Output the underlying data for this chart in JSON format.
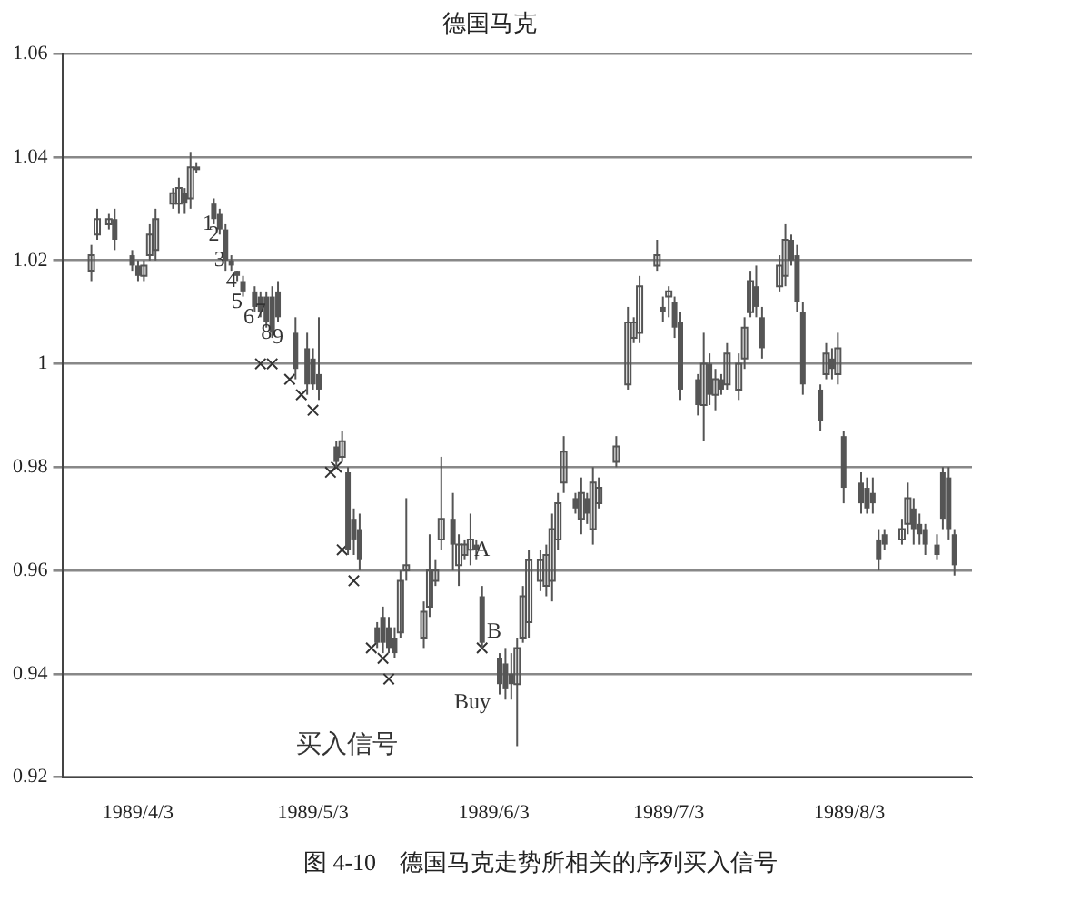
{
  "chart_data": {
    "type": "candlestick",
    "title": "德国马克",
    "color": "#555555",
    "x": [
      "1989-03-26",
      "1989-03-27",
      "1989-03-29",
      "1989-03-30",
      "1989-04-02",
      "1989-04-03",
      "1989-04-04",
      "1989-04-05",
      "1989-04-06",
      "1989-04-09",
      "1989-04-10",
      "1989-04-11",
      "1989-04-12",
      "1989-04-13",
      "1989-04-16",
      "1989-04-17",
      "1989-04-18",
      "1989-04-19",
      "1989-04-20",
      "1989-04-21",
      "1989-04-23",
      "1989-04-24",
      "1989-04-25",
      "1989-04-26",
      "1989-04-27",
      "1989-04-30",
      "1989-05-02",
      "1989-05-03",
      "1989-05-04",
      "1989-05-07",
      "1989-05-08",
      "1989-05-09",
      "1989-05-10",
      "1989-05-11",
      "1989-05-14",
      "1989-05-15",
      "1989-05-16",
      "1989-05-17",
      "1989-05-18",
      "1989-05-19",
      "1989-05-22",
      "1989-05-23",
      "1989-05-24",
      "1989-05-25",
      "1989-05-27",
      "1989-05-28",
      "1989-05-29",
      "1989-05-30",
      "1989-05-31",
      "1989-06-01",
      "1989-06-04",
      "1989-06-05",
      "1989-06-06",
      "1989-06-07",
      "1989-06-08",
      "1989-06-09",
      "1989-06-11",
      "1989-06-12",
      "1989-06-13",
      "1989-06-14",
      "1989-06-15",
      "1989-06-17",
      "1989-06-18",
      "1989-06-19",
      "1989-06-20",
      "1989-06-21",
      "1989-06-24",
      "1989-06-26",
      "1989-06-27",
      "1989-06-28",
      "1989-07-01",
      "1989-07-02",
      "1989-07-03",
      "1989-07-04",
      "1989-07-05",
      "1989-07-08",
      "1989-07-09",
      "1989-07-10",
      "1989-07-11",
      "1989-07-12",
      "1989-07-13",
      "1989-07-15",
      "1989-07-16",
      "1989-07-17",
      "1989-07-18",
      "1989-07-19",
      "1989-07-22",
      "1989-07-23",
      "1989-07-24",
      "1989-07-25",
      "1989-07-26",
      "1989-07-29",
      "1989-07-30",
      "1989-07-31",
      "1989-08-01",
      "1989-08-02",
      "1989-08-05",
      "1989-08-06",
      "1989-08-07",
      "1989-08-08",
      "1989-08-09",
      "1989-08-12",
      "1989-08-13",
      "1989-08-14",
      "1989-08-15",
      "1989-08-16",
      "1989-08-18",
      "1989-08-19",
      "1989-08-20",
      "1989-08-21"
    ],
    "ohlc": [
      [
        1.018,
        1.023,
        1.016,
        1.021
      ],
      [
        1.025,
        1.03,
        1.024,
        1.028
      ],
      [
        1.027,
        1.029,
        1.026,
        1.028
      ],
      [
        1.028,
        1.03,
        1.022,
        1.024
      ],
      [
        1.021,
        1.022,
        1.018,
        1.019
      ],
      [
        1.019,
        1.02,
        1.016,
        1.017
      ],
      [
        1.017,
        1.02,
        1.016,
        1.019
      ],
      [
        1.021,
        1.027,
        1.02,
        1.025
      ],
      [
        1.022,
        1.03,
        1.02,
        1.028
      ],
      [
        1.031,
        1.034,
        1.03,
        1.033
      ],
      [
        1.031,
        1.036,
        1.029,
        1.034
      ],
      [
        1.033,
        1.034,
        1.029,
        1.031
      ],
      [
        1.032,
        1.041,
        1.03,
        1.038
      ],
      [
        1.038,
        1.039,
        1.037,
        1.038
      ],
      [
        1.031,
        1.032,
        1.027,
        1.028
      ],
      [
        1.029,
        1.03,
        1.025,
        1.026
      ],
      [
        1.026,
        1.027,
        1.018,
        1.02
      ],
      [
        1.02,
        1.021,
        1.018,
        1.019
      ],
      [
        1.018,
        1.018,
        1.016,
        1.017
      ],
      [
        1.016,
        1.017,
        1.013,
        1.014
      ],
      [
        1.014,
        1.015,
        1.01,
        1.011
      ],
      [
        1.013,
        1.014,
        1.009,
        1.01
      ],
      [
        1.013,
        1.014,
        1.007,
        1.008
      ],
      [
        1.013,
        1.015,
        1.005,
        1.006
      ],
      [
        1.014,
        1.016,
        1.008,
        1.009
      ],
      [
        1.006,
        1.009,
        0.997,
        0.999
      ],
      [
        1.003,
        1.006,
        0.994,
        0.996
      ],
      [
        1.001,
        1.003,
        0.995,
        0.996
      ],
      [
        0.998,
        1.009,
        0.993,
        0.995
      ],
      [
        0.984,
        0.985,
        0.98,
        0.981
      ],
      [
        0.982,
        0.987,
        0.981,
        0.985
      ],
      [
        0.979,
        0.98,
        0.963,
        0.964
      ],
      [
        0.97,
        0.972,
        0.963,
        0.966
      ],
      [
        0.968,
        0.971,
        0.96,
        0.962
      ],
      [
        0.949,
        0.95,
        0.945,
        0.946
      ],
      [
        0.951,
        0.953,
        0.944,
        0.946
      ],
      [
        0.949,
        0.951,
        0.944,
        0.945
      ],
      [
        0.947,
        0.949,
        0.943,
        0.944
      ],
      [
        0.948,
        0.96,
        0.947,
        0.958
      ],
      [
        0.96,
        0.974,
        0.958,
        0.961
      ],
      [
        0.947,
        0.954,
        0.945,
        0.952
      ],
      [
        0.953,
        0.967,
        0.951,
        0.96
      ],
      [
        0.958,
        0.962,
        0.957,
        0.96
      ],
      [
        0.966,
        0.982,
        0.964,
        0.97
      ],
      [
        0.97,
        0.975,
        0.96,
        0.965
      ],
      [
        0.961,
        0.967,
        0.957,
        0.965
      ],
      [
        0.963,
        0.966,
        0.962,
        0.965
      ],
      [
        0.964,
        0.971,
        0.961,
        0.966
      ],
      [
        0.965,
        0.966,
        0.962,
        0.964
      ],
      [
        0.955,
        0.957,
        0.945,
        0.946
      ],
      [
        0.943,
        0.944,
        0.936,
        0.938
      ],
      [
        0.942,
        0.945,
        0.935,
        0.937
      ],
      [
        0.94,
        0.944,
        0.935,
        0.938
      ],
      [
        0.938,
        0.947,
        0.926,
        0.945
      ],
      [
        0.947,
        0.957,
        0.946,
        0.955
      ],
      [
        0.95,
        0.964,
        0.947,
        0.962
      ],
      [
        0.958,
        0.964,
        0.956,
        0.962
      ],
      [
        0.957,
        0.965,
        0.955,
        0.963
      ],
      [
        0.958,
        0.971,
        0.954,
        0.968
      ],
      [
        0.966,
        0.975,
        0.964,
        0.973
      ],
      [
        0.977,
        0.986,
        0.975,
        0.983
      ],
      [
        0.974,
        0.975,
        0.971,
        0.972
      ],
      [
        0.97,
        0.978,
        0.967,
        0.975
      ],
      [
        0.974,
        0.975,
        0.969,
        0.971
      ],
      [
        0.968,
        0.98,
        0.965,
        0.977
      ],
      [
        0.973,
        0.978,
        0.972,
        0.976
      ],
      [
        0.981,
        0.986,
        0.98,
        0.984
      ],
      [
        0.996,
        1.011,
        0.995,
        1.008
      ],
      [
        1.005,
        1.009,
        1.004,
        1.008
      ],
      [
        1.006,
        1.017,
        1.004,
        1.015
      ],
      [
        1.019,
        1.024,
        1.018,
        1.021
      ],
      [
        1.011,
        1.013,
        1.008,
        1.01
      ],
      [
        1.013,
        1.015,
        1.009,
        1.014
      ],
      [
        1.012,
        1.013,
        1.005,
        1.007
      ],
      [
        1.008,
        1.01,
        0.993,
        0.995
      ],
      [
        0.997,
        0.998,
        0.99,
        0.992
      ],
      [
        0.992,
        1.006,
        0.985,
        1.0
      ],
      [
        1.0,
        1.002,
        0.992,
        0.994
      ],
      [
        0.994,
        0.999,
        0.991,
        0.997
      ],
      [
        0.997,
        0.998,
        0.994,
        0.995
      ],
      [
        0.996,
        1.004,
        0.995,
        1.002
      ],
      [
        0.995,
        1.002,
        0.993,
        1.0
      ],
      [
        1.001,
        1.009,
        0.999,
        1.007
      ],
      [
        1.01,
        1.018,
        1.009,
        1.016
      ],
      [
        1.015,
        1.019,
        1.009,
        1.011
      ],
      [
        1.009,
        1.011,
        1.001,
        1.003
      ],
      [
        1.015,
        1.021,
        1.014,
        1.019
      ],
      [
        1.017,
        1.027,
        1.015,
        1.024
      ],
      [
        1.024,
        1.025,
        1.019,
        1.02
      ],
      [
        1.021,
        1.023,
        1.01,
        1.012
      ],
      [
        1.01,
        1.012,
        0.994,
        0.996
      ],
      [
        0.995,
        0.996,
        0.987,
        0.989
      ],
      [
        0.998,
        1.004,
        0.997,
        1.002
      ],
      [
        1.001,
        1.003,
        0.997,
        0.999
      ],
      [
        0.998,
        1.006,
        0.996,
        1.003
      ],
      [
        0.986,
        0.987,
        0.973,
        0.976
      ],
      [
        0.977,
        0.979,
        0.971,
        0.973
      ],
      [
        0.976,
        0.978,
        0.971,
        0.972
      ],
      [
        0.975,
        0.978,
        0.971,
        0.973
      ],
      [
        0.966,
        0.968,
        0.96,
        0.962
      ],
      [
        0.967,
        0.968,
        0.964,
        0.965
      ],
      [
        0.966,
        0.97,
        0.965,
        0.968
      ],
      [
        0.969,
        0.977,
        0.967,
        0.974
      ],
      [
        0.972,
        0.974,
        0.965,
        0.968
      ],
      [
        0.969,
        0.971,
        0.965,
        0.967
      ],
      [
        0.968,
        0.969,
        0.963,
        0.965
      ],
      [
        0.965,
        0.967,
        0.962,
        0.963
      ],
      [
        0.979,
        0.98,
        0.968,
        0.97
      ],
      [
        0.978,
        0.98,
        0.966,
        0.968
      ],
      [
        0.967,
        0.968,
        0.959,
        0.961
      ]
    ],
    "xlim": [
      "1989-03-21",
      "1989-08-24"
    ],
    "xticks": [
      {
        "value": "1989-04-03",
        "label": "1989/4/3"
      },
      {
        "value": "1989-05-03",
        "label": "1989/5/3"
      },
      {
        "value": "1989-06-03",
        "label": "1989/6/3"
      },
      {
        "value": "1989-07-03",
        "label": "1989/7/3"
      },
      {
        "value": "1989-08-03",
        "label": "1989/8/3"
      }
    ],
    "ylim": [
      0.92,
      1.06
    ],
    "yticks": [
      0.92,
      0.94,
      0.96,
      0.98,
      1,
      1.02,
      1.04,
      1.06
    ],
    "grid": "y",
    "series": [
      {
        "type": "scatter",
        "marker": "cross",
        "color": "#333333",
        "x": [
          "1989-04-24",
          "1989-04-26",
          "1989-04-29",
          "1989-05-01",
          "1989-05-03",
          "1989-05-06",
          "1989-05-07",
          "1989-05-08",
          "1989-05-10",
          "1989-05-13",
          "1989-05-15",
          "1989-05-16",
          "1989-06-01"
        ],
        "values": [
          1.0,
          1.0,
          0.997,
          0.994,
          0.991,
          0.979,
          0.98,
          0.964,
          0.958,
          0.945,
          0.943,
          0.939,
          0.945
        ]
      }
    ],
    "annotations": [
      {
        "text": "1",
        "x": "1989-04-15",
        "y": 1.027
      },
      {
        "text": "2",
        "x": "1989-04-16",
        "y": 1.025
      },
      {
        "text": "3",
        "x": "1989-04-17",
        "y": 1.02
      },
      {
        "text": "4",
        "x": "1989-04-19",
        "y": 1.016
      },
      {
        "text": "5",
        "x": "1989-04-20",
        "y": 1.012
      },
      {
        "text": "6",
        "x": "1989-04-22",
        "y": 1.009
      },
      {
        "text": "7",
        "x": "1989-04-24",
        "y": 1.01
      },
      {
        "text": "8",
        "x": "1989-04-25",
        "y": 1.006
      },
      {
        "text": "9",
        "x": "1989-04-27",
        "y": 1.005
      },
      {
        "text": "A",
        "x": "1989-06-01",
        "y": 0.964
      },
      "B",
      "Buy",
      "买入信号",
      "图 4-10　德国马克走势所相关的序列买入信号"
    ]
  }
}
